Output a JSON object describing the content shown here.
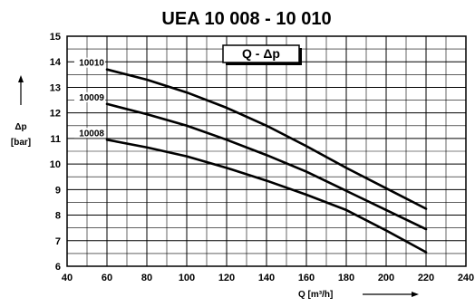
{
  "chart_data": {
    "type": "line",
    "title": "UEA 10 008 - 10 010",
    "legend_box": "Q - Δp",
    "xlabel": "Q  [m³/h]",
    "ylabel_top": "Δp",
    "ylabel_bottom": "[bar]",
    "xlim": [
      40,
      240
    ],
    "ylim": [
      6,
      15
    ],
    "x_ticks": [
      40,
      60,
      80,
      100,
      120,
      140,
      160,
      180,
      200,
      220,
      240
    ],
    "y_ticks": [
      6,
      7,
      8,
      9,
      10,
      11,
      12,
      13,
      14,
      15
    ],
    "grid": true,
    "legend_position": "top-right",
    "series": [
      {
        "name": "10010",
        "x": [
          60,
          80,
          100,
          120,
          140,
          160,
          180,
          200,
          220
        ],
        "values": [
          13.7,
          13.3,
          12.8,
          12.2,
          11.5,
          10.7,
          9.85,
          9.05,
          8.25
        ]
      },
      {
        "name": "10009",
        "x": [
          60,
          80,
          100,
          120,
          140,
          160,
          180,
          200,
          220
        ],
        "values": [
          12.35,
          11.95,
          11.5,
          10.95,
          10.35,
          9.7,
          8.95,
          8.2,
          7.45
        ]
      },
      {
        "name": "10008",
        "x": [
          60,
          80,
          100,
          120,
          140,
          160,
          180,
          200,
          220
        ],
        "values": [
          10.95,
          10.65,
          10.3,
          9.85,
          9.35,
          8.8,
          8.2,
          7.4,
          6.55
        ]
      }
    ]
  }
}
